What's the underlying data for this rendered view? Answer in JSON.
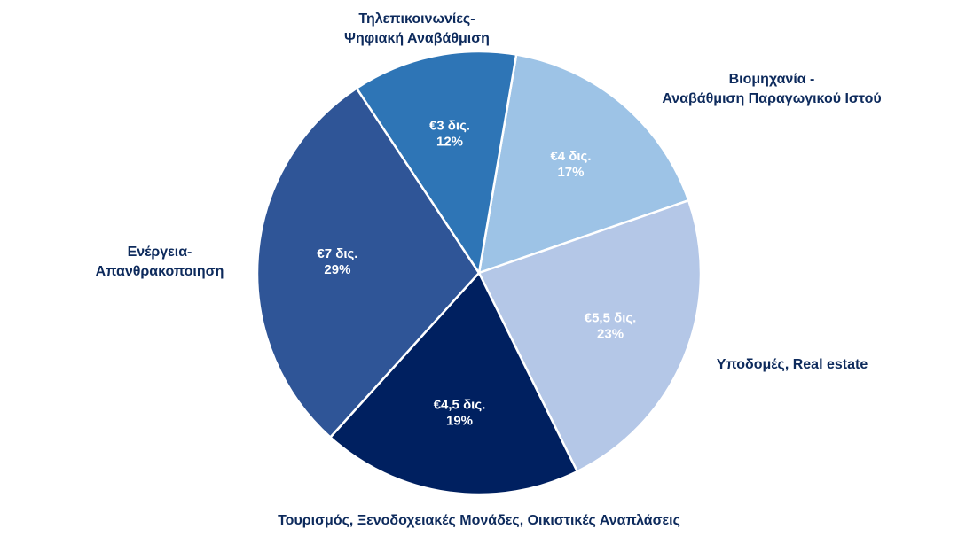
{
  "chart_data": {
    "type": "pie",
    "categories": [
      "Βιομηχανία -\nΑναβάθμιση Παραγωγικού Ιστού",
      "Υποδομές, Real estate",
      "Τουρισμός, Ξενοδοχειακές Μονάδες, Οικιστικές Αναπλάσεις",
      "Ενέργεια-\nΑπανθρακοποιηση",
      "Τηλεπικοινωνίες-\nΨηφιακή Αναβάθμιση"
    ],
    "values": [
      17,
      23,
      19,
      29,
      12
    ],
    "value_labels": [
      "17%",
      "23%",
      "19%",
      "29%",
      "12%"
    ],
    "amount_labels": [
      "€4 δις.",
      "€5,5 δις.",
      "€4,5 δις.",
      "€7 δις.",
      "€3 δις."
    ],
    "colors": [
      "#9dc3e6",
      "#b4c7e7",
      "#002060",
      "#2f5597",
      "#2e75b6"
    ]
  }
}
